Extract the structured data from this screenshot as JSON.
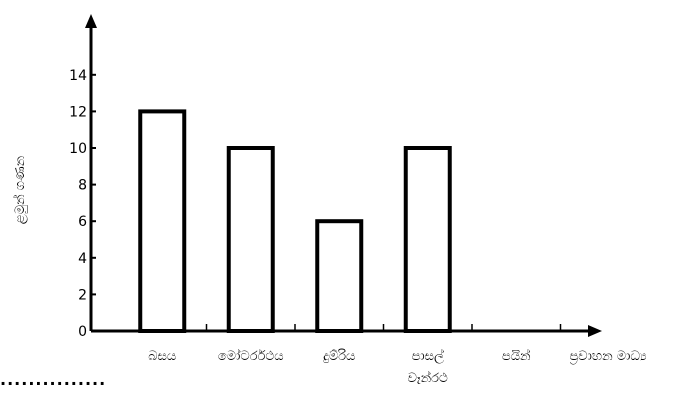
{
  "chart_data": {
    "type": "bar",
    "categories": [
      "බසය",
      "මෝටර්රථය",
      "දුම්රිය",
      "පාසල් වෑන්රථ",
      "පයින්"
    ],
    "category_lines": [
      [
        "බසය"
      ],
      [
        "මෝටර්රථය"
      ],
      [
        "දුම්රිය"
      ],
      [
        "පාසල්",
        "වෑන්රථ"
      ],
      [
        "පයින්"
      ]
    ],
    "values": [
      12,
      10,
      6,
      10,
      null
    ],
    "xlabel": "ප්‍රවාහන මාධ්‍ය",
    "ylabel": "ළමුන් ගණන",
    "ylim": [
      0,
      14
    ],
    "yticks": [
      0,
      2,
      4,
      6,
      8,
      10,
      12,
      14
    ],
    "grid": false,
    "bar_fill": "#ffffff",
    "bar_stroke": "#000000"
  },
  "footer": {
    "dotted_line": "···············"
  }
}
